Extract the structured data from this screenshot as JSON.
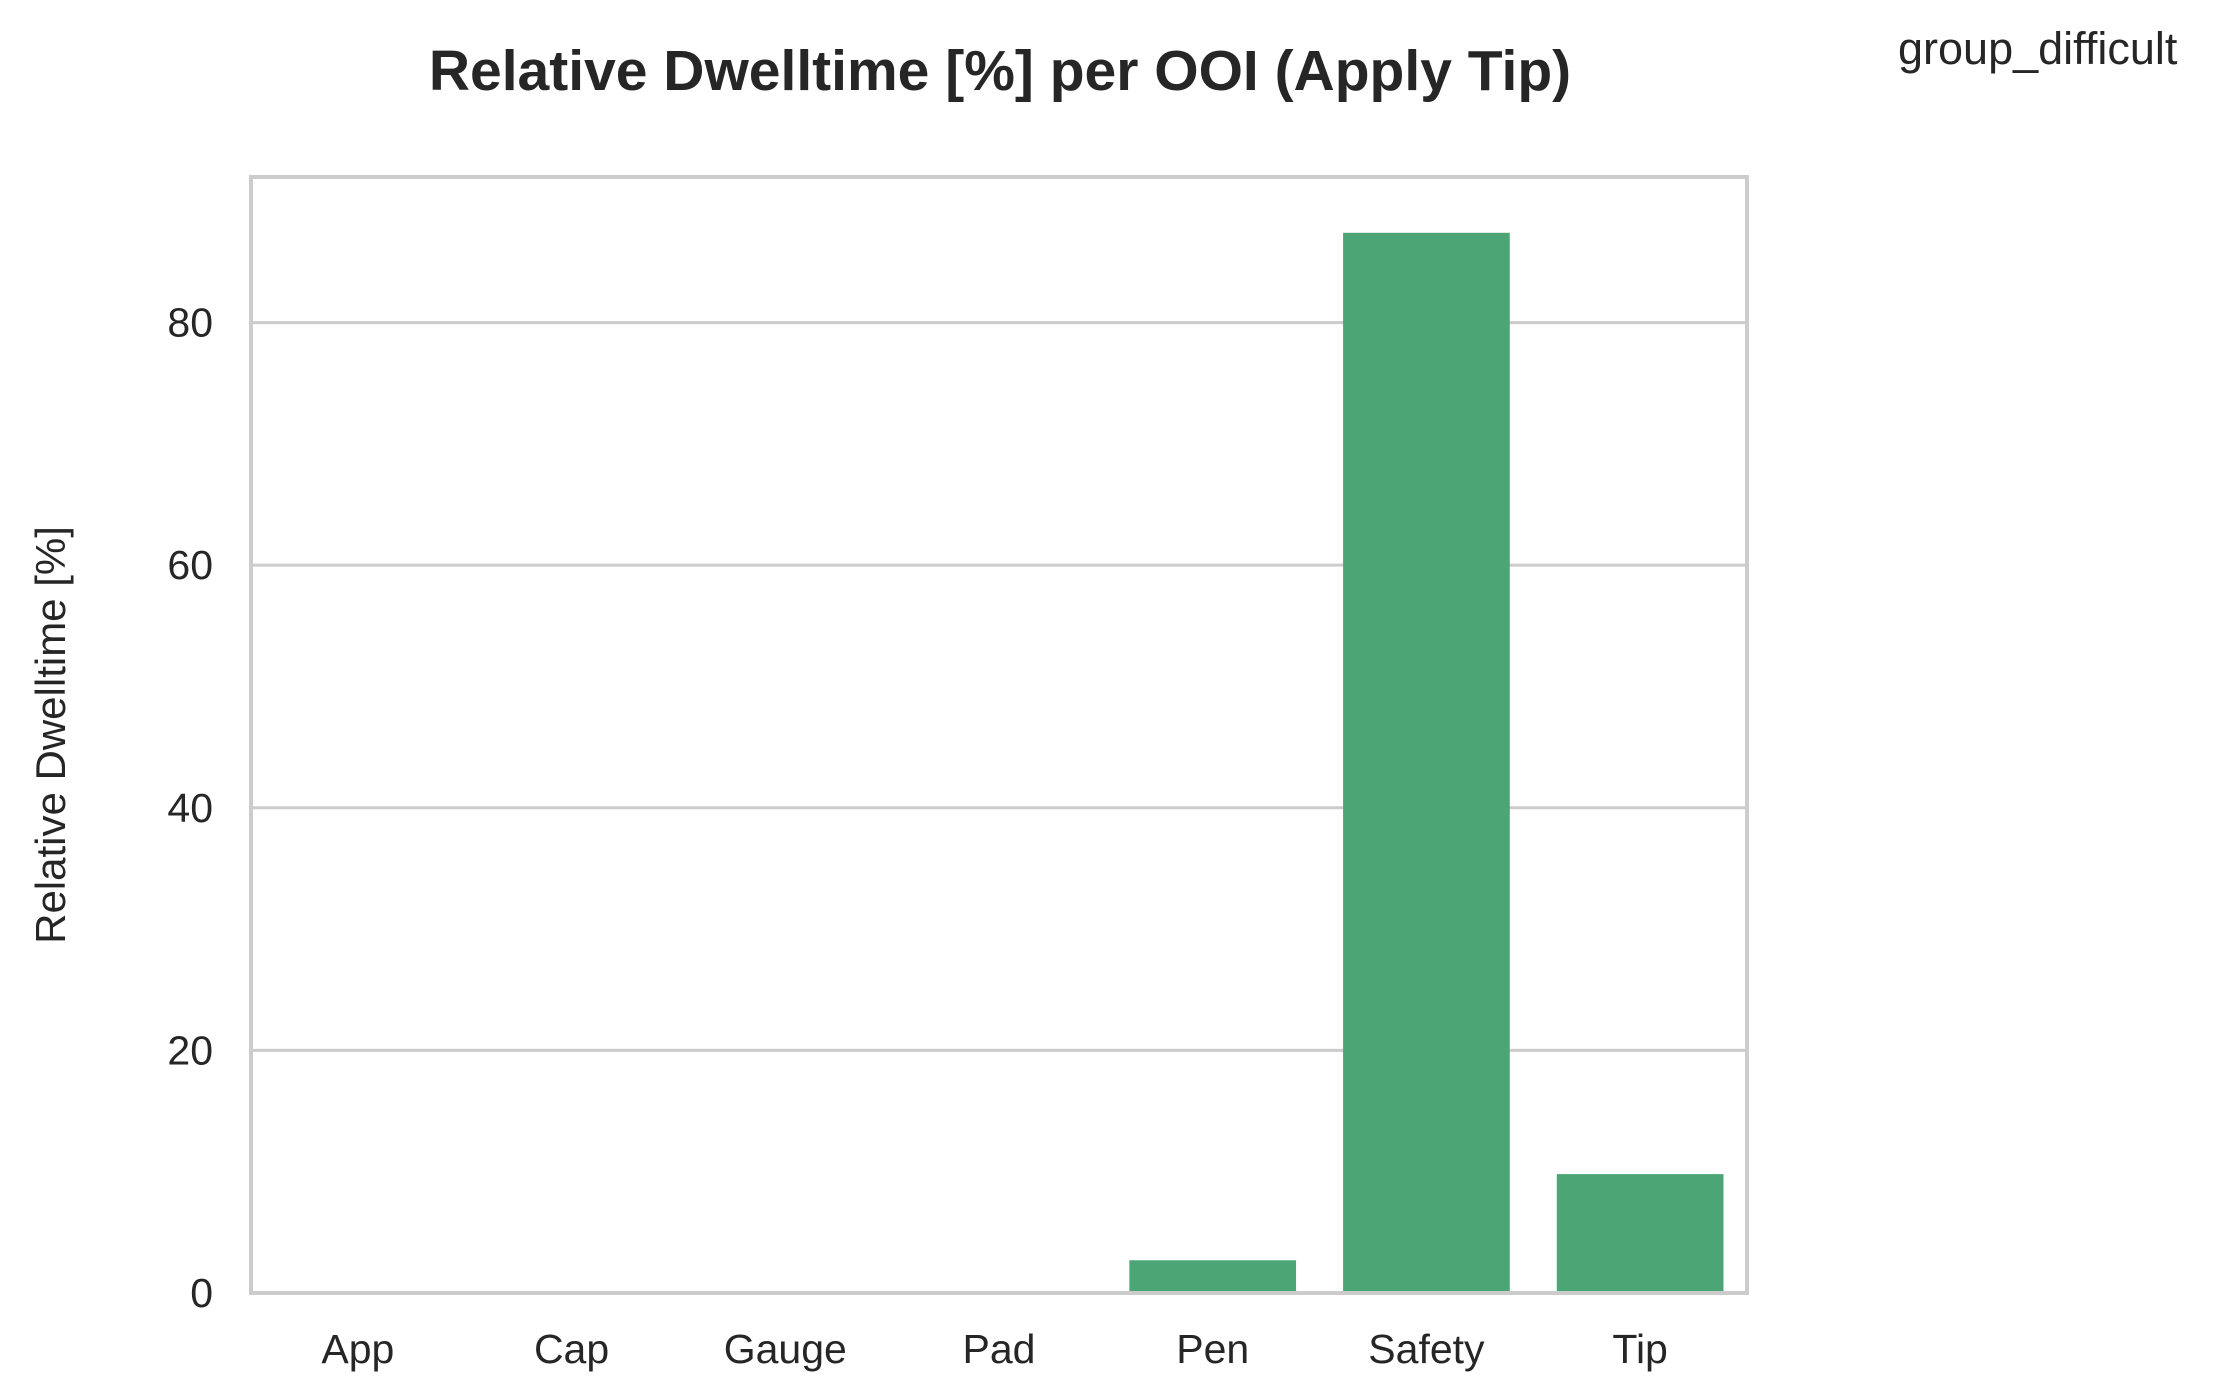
{
  "chart_data": {
    "type": "bar",
    "title": "Relative Dwelltime [%] per OOI (Apply Tip)",
    "xlabel": "",
    "ylabel": "Relative Dwelltime [%]",
    "legend_title": "group_difficult",
    "legend_position": "top-right",
    "categories": [
      "App",
      "Cap",
      "Gauge",
      "Pad",
      "Pen",
      "Safety",
      "Tip"
    ],
    "values": [
      0,
      0,
      0,
      0,
      2.7,
      87.4,
      9.8
    ],
    "ylim": [
      0,
      92
    ],
    "yticks": [
      0,
      20,
      40,
      60,
      80
    ],
    "grid": "horizontal",
    "bar_color": "#4ca574"
  }
}
